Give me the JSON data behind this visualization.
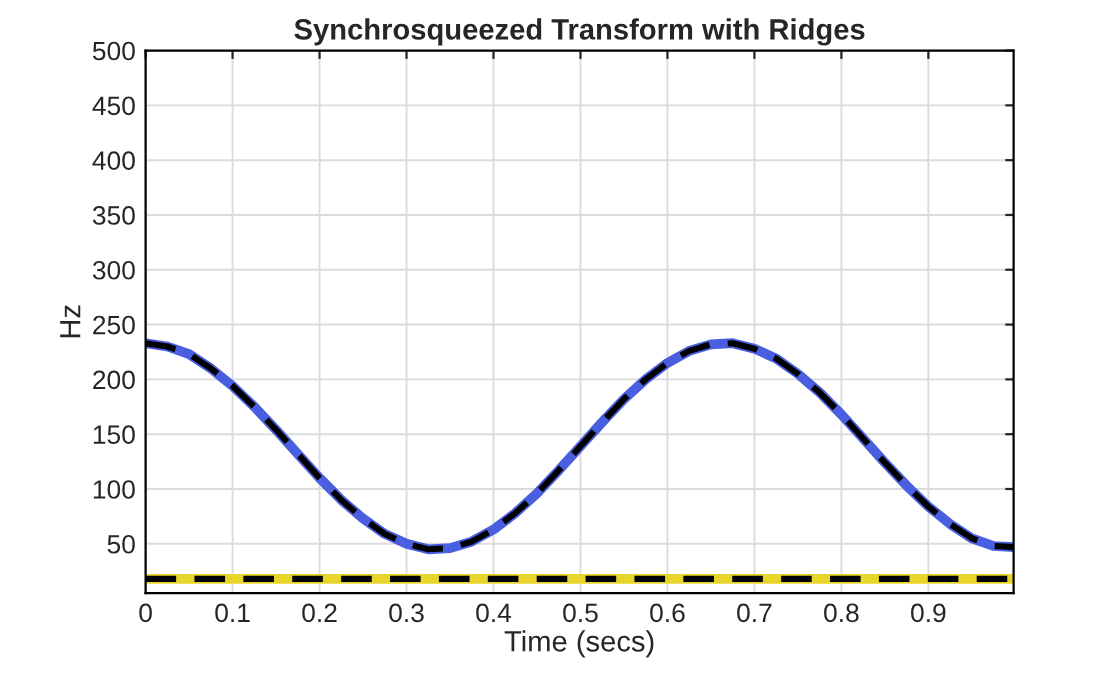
{
  "chart_data": {
    "type": "line",
    "title": "Synchrosqueezed Transform with Ridges",
    "xlabel": "Time (secs)",
    "ylabel": "Hz",
    "xlim": [
      0,
      0.998
    ],
    "ylim": [
      5,
      500
    ],
    "xticks": [
      0,
      0.1,
      0.2,
      0.3,
      0.4,
      0.5,
      0.6,
      0.7,
      0.8,
      0.9
    ],
    "yticks": [
      50,
      100,
      150,
      200,
      250,
      300,
      350,
      400,
      450,
      500
    ],
    "grid": true,
    "legend": false,
    "marker": "none",
    "x": [
      0,
      0.025,
      0.05,
      0.075,
      0.1,
      0.125,
      0.15,
      0.175,
      0.2,
      0.225,
      0.25,
      0.275,
      0.3,
      0.325,
      0.35,
      0.375,
      0.4,
      0.425,
      0.45,
      0.475,
      0.5,
      0.525,
      0.55,
      0.575,
      0.6,
      0.625,
      0.65,
      0.675,
      0.7,
      0.725,
      0.75,
      0.775,
      0.8,
      0.825,
      0.85,
      0.875,
      0.9,
      0.925,
      0.95,
      0.975,
      0.998
    ],
    "series": [
      {
        "color": "#4a5ee0",
        "line_style": "solid",
        "values": [
          233,
          230,
          223,
          210,
          194,
          175,
          154,
          132,
          110,
          90,
          73,
          59,
          50,
          45,
          46,
          52,
          63,
          78,
          96,
          117,
          139,
          161,
          182,
          200,
          215,
          226,
          232,
          233,
          228,
          219,
          205,
          188,
          168,
          146,
          124,
          103,
          84,
          68,
          55,
          48,
          47
        ]
      },
      {
        "color": "#e8d52a",
        "line_style": "solid",
        "values": [
          18,
          18,
          18,
          18,
          18,
          18,
          18,
          18,
          18,
          18,
          18,
          18,
          18,
          18,
          18,
          18,
          18,
          18,
          18,
          18,
          18,
          18,
          18,
          18,
          18,
          18,
          18,
          18,
          18,
          18,
          18,
          18,
          18,
          18,
          18,
          18,
          18,
          18,
          18,
          18,
          18
        ]
      },
      {
        "color": "#000000",
        "line_style": "dashed",
        "values": [
          233,
          230,
          223,
          210,
          194,
          175,
          154,
          132,
          110,
          90,
          73,
          59,
          50,
          45,
          46,
          52,
          63,
          78,
          96,
          117,
          139,
          161,
          182,
          200,
          215,
          226,
          232,
          233,
          228,
          219,
          205,
          188,
          168,
          146,
          124,
          103,
          84,
          68,
          55,
          48,
          47
        ]
      },
      {
        "color": "#000000",
        "line_style": "dashed",
        "values": [
          18,
          18,
          18,
          18,
          18,
          18,
          18,
          18,
          18,
          18,
          18,
          18,
          18,
          18,
          18,
          18,
          18,
          18,
          18,
          18,
          18,
          18,
          18,
          18,
          18,
          18,
          18,
          18,
          18,
          18,
          18,
          18,
          18,
          18,
          18,
          18,
          18,
          18,
          18,
          18,
          18
        ]
      }
    ]
  }
}
